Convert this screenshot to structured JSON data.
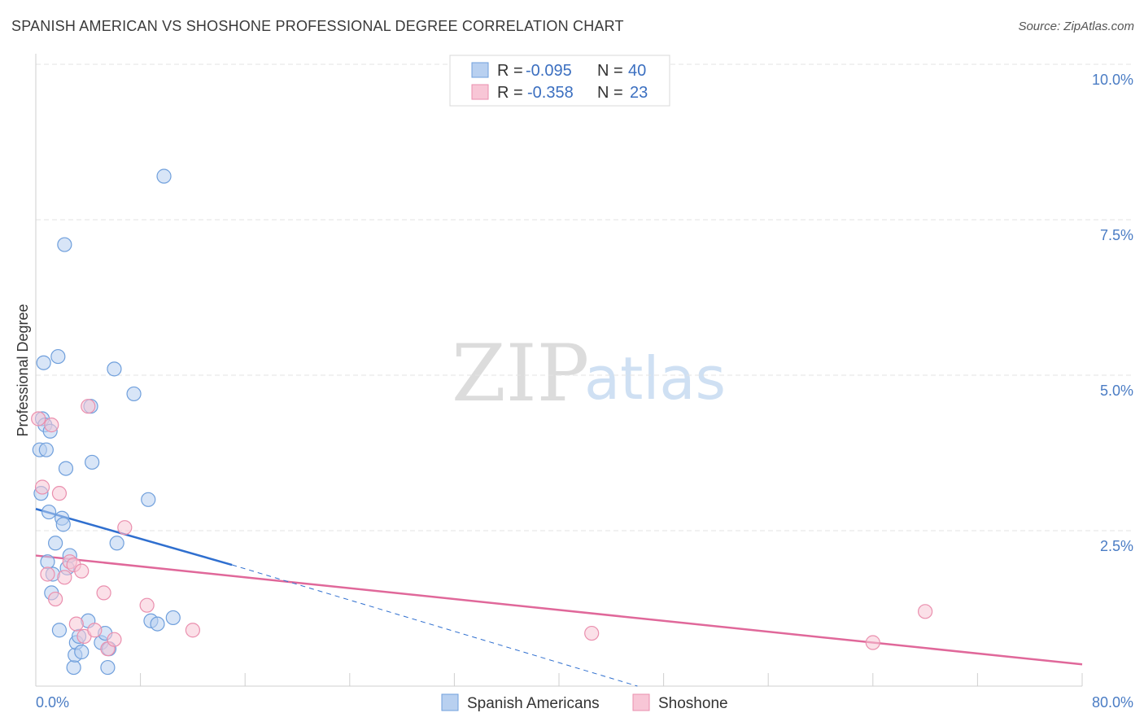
{
  "title": "SPANISH AMERICAN VS SHOSHONE PROFESSIONAL DEGREE CORRELATION CHART",
  "source": "Source: ZipAtlas.com",
  "watermark": {
    "part1": "ZIP",
    "part2": "atlas"
  },
  "colors": {
    "blue_fill": "#b8d0f0",
    "blue_stroke": "#6f9fdc",
    "blue_line": "#2f6fcf",
    "pink_fill": "#f8c6d6",
    "pink_stroke": "#ea8fae",
    "pink_line": "#e0689a",
    "grid": "#e3e3e3",
    "axis_text": "#4a7cc4"
  },
  "legend": {
    "rows": [
      {
        "r_label": "R =",
        "r_value": "-0.095",
        "n_label": "N =",
        "n_value": "40"
      },
      {
        "r_label": "R =",
        "r_value": "-0.358",
        "n_label": "N =",
        "n_value": "23"
      }
    ]
  },
  "chart_data": {
    "type": "scatter",
    "title": "SPANISH AMERICAN VS SHOSHONE PROFESSIONAL DEGREE CORRELATION CHART",
    "xlabel": "",
    "ylabel": "Professional Degree",
    "xlim": [
      0,
      80
    ],
    "ylim": [
      0,
      10
    ],
    "x_tick_labels": {
      "min": "0.0%",
      "max": "80.0%"
    },
    "y_ticks": [
      2.5,
      5.0,
      7.5,
      10.0
    ],
    "y_tick_labels": [
      "2.5%",
      "5.0%",
      "7.5%",
      "10.0%"
    ],
    "grid": true,
    "legend_position": "top-center",
    "series": [
      {
        "name": "Spanish Americans",
        "color": "blue",
        "points": [
          [
            0.3,
            3.8
          ],
          [
            0.4,
            3.1
          ],
          [
            0.5,
            4.3
          ],
          [
            0.6,
            5.2
          ],
          [
            0.7,
            4.2
          ],
          [
            0.8,
            3.8
          ],
          [
            0.9,
            2.0
          ],
          [
            1.0,
            2.8
          ],
          [
            1.1,
            4.1
          ],
          [
            1.2,
            1.5
          ],
          [
            1.3,
            1.8
          ],
          [
            1.5,
            2.3
          ],
          [
            1.7,
            5.3
          ],
          [
            1.8,
            0.9
          ],
          [
            2.0,
            2.7
          ],
          [
            2.1,
            2.6
          ],
          [
            2.2,
            7.1
          ],
          [
            2.3,
            3.5
          ],
          [
            2.4,
            1.9
          ],
          [
            2.6,
            2.1
          ],
          [
            2.9,
            0.3
          ],
          [
            3.0,
            0.5
          ],
          [
            3.1,
            0.7
          ],
          [
            3.3,
            0.8
          ],
          [
            3.5,
            0.55
          ],
          [
            4.0,
            1.05
          ],
          [
            4.2,
            4.5
          ],
          [
            4.3,
            3.6
          ],
          [
            5.0,
            0.7
          ],
          [
            5.3,
            0.85
          ],
          [
            5.5,
            0.3
          ],
          [
            5.6,
            0.6
          ],
          [
            6.0,
            5.1
          ],
          [
            6.2,
            2.3
          ],
          [
            7.5,
            4.7
          ],
          [
            8.6,
            3.0
          ],
          [
            8.8,
            1.05
          ],
          [
            9.3,
            1.0
          ],
          [
            9.8,
            8.2
          ],
          [
            10.5,
            1.1
          ]
        ],
        "trend": {
          "x": [
            0,
            15
          ],
          "y": [
            2.85,
            1.95
          ]
        },
        "trend_extension": {
          "x": [
            15,
            46
          ],
          "y": [
            1.95,
            0
          ]
        }
      },
      {
        "name": "Shoshone",
        "color": "pink",
        "points": [
          [
            0.2,
            4.3
          ],
          [
            0.5,
            3.2
          ],
          [
            0.9,
            1.8
          ],
          [
            1.2,
            4.2
          ],
          [
            1.5,
            1.4
          ],
          [
            1.8,
            3.1
          ],
          [
            2.2,
            1.75
          ],
          [
            2.6,
            2.0
          ],
          [
            2.9,
            1.95
          ],
          [
            3.1,
            1.0
          ],
          [
            3.5,
            1.85
          ],
          [
            3.7,
            0.8
          ],
          [
            4.0,
            4.5
          ],
          [
            4.5,
            0.9
          ],
          [
            5.2,
            1.5
          ],
          [
            5.5,
            0.6
          ],
          [
            6.0,
            0.75
          ],
          [
            6.8,
            2.55
          ],
          [
            8.5,
            1.3
          ],
          [
            12.0,
            0.9
          ],
          [
            42.5,
            0.85
          ],
          [
            64.0,
            0.7
          ],
          [
            68.0,
            1.2
          ]
        ],
        "trend": {
          "x": [
            0,
            80
          ],
          "y": [
            2.1,
            0.35
          ]
        }
      }
    ]
  }
}
